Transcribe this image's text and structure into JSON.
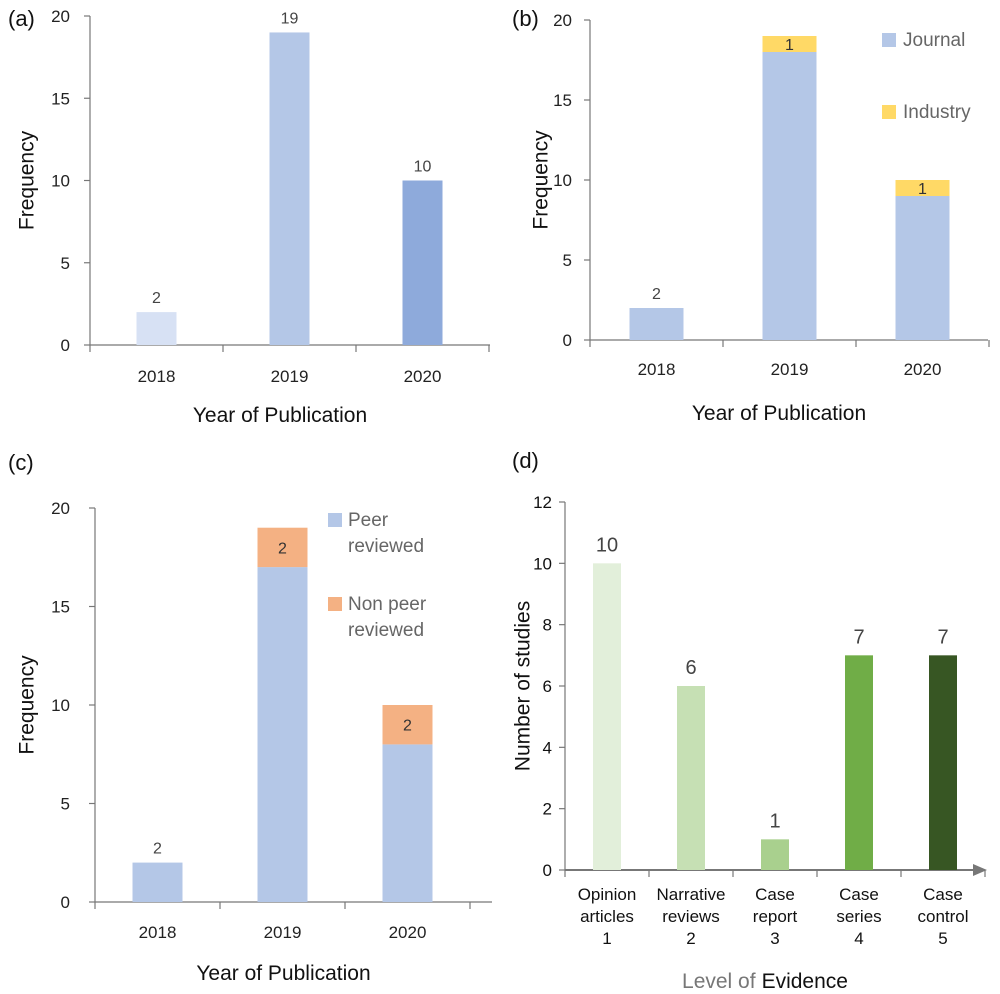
{
  "chart_data": [
    {
      "id": "a",
      "panel_label": "(a)",
      "type": "bar",
      "categories": [
        "2018",
        "2019",
        "2020"
      ],
      "values": [
        2,
        19,
        10
      ],
      "bar_colors": [
        "#d7e1f4",
        "#b4c7e7",
        "#8eaadb"
      ],
      "data_labels": [
        "2",
        "19",
        "10"
      ],
      "xlabel": "Year of Publication",
      "ylabel": "Frequency",
      "ylim": [
        0,
        20
      ],
      "yticks": [
        "0",
        "5",
        "10",
        "15",
        "20"
      ],
      "grid": false
    },
    {
      "id": "b",
      "panel_label": "(b)",
      "type": "bar",
      "stacked": true,
      "categories": [
        "2018",
        "2019",
        "2020"
      ],
      "series": [
        {
          "name": "Journal",
          "values": [
            2,
            18,
            9
          ],
          "color": "#b4c7e7"
        },
        {
          "name": "Industry",
          "values": [
            0,
            1,
            1
          ],
          "color": "#ffd966"
        }
      ],
      "data_labels": [
        "2",
        "1",
        "1"
      ],
      "legend": "top-right",
      "xlabel": "Year of Publication",
      "ylabel": "Frequency",
      "ylim": [
        0,
        20
      ],
      "yticks": [
        "0",
        "5",
        "10",
        "15",
        "20"
      ],
      "grid": false
    },
    {
      "id": "c",
      "panel_label": "(c)",
      "type": "bar",
      "stacked": true,
      "categories": [
        "2018",
        "2019",
        "2020"
      ],
      "series": [
        {
          "name": "Peer reviewed",
          "name_lines": [
            "Peer",
            "reviewed"
          ],
          "values": [
            2,
            17,
            8
          ],
          "color": "#b4c7e7"
        },
        {
          "name": "Non peer reviewed",
          "name_lines": [
            "Non peer",
            "reviewed"
          ],
          "values": [
            0,
            2,
            2
          ],
          "color": "#f4b183"
        }
      ],
      "data_labels": [
        "2",
        "2",
        "2"
      ],
      "legend": "top-right",
      "xlabel": "Year of Publication",
      "ylabel": "Frequency",
      "ylim": [
        0,
        20
      ],
      "yticks": [
        "0",
        "5",
        "10",
        "15",
        "20"
      ],
      "grid": false
    },
    {
      "id": "d",
      "panel_label": "(d)",
      "type": "bar",
      "categories": [
        {
          "lines": [
            "Opinion",
            "articles",
            "1"
          ]
        },
        {
          "lines": [
            "Narrative",
            "reviews",
            "2"
          ]
        },
        {
          "lines": [
            "Case",
            "report",
            "3"
          ]
        },
        {
          "lines": [
            "Case",
            "series",
            "4"
          ]
        },
        {
          "lines": [
            "Case",
            "control",
            "5"
          ]
        }
      ],
      "values": [
        10,
        6,
        1,
        7,
        7
      ],
      "bar_colors": [
        "#e2efda",
        "#c6e0b4",
        "#a9d08e",
        "#70ad47",
        "#375623"
      ],
      "data_labels": [
        "10",
        "6",
        "1",
        "7",
        "7"
      ],
      "xlabel_parts": [
        "Level of",
        "Evidence"
      ],
      "ylabel": "Number of studies",
      "ylim": [
        0,
        12
      ],
      "yticks": [
        "0",
        "2",
        "4",
        "6",
        "8",
        "10",
        "12"
      ],
      "grid": false
    }
  ]
}
